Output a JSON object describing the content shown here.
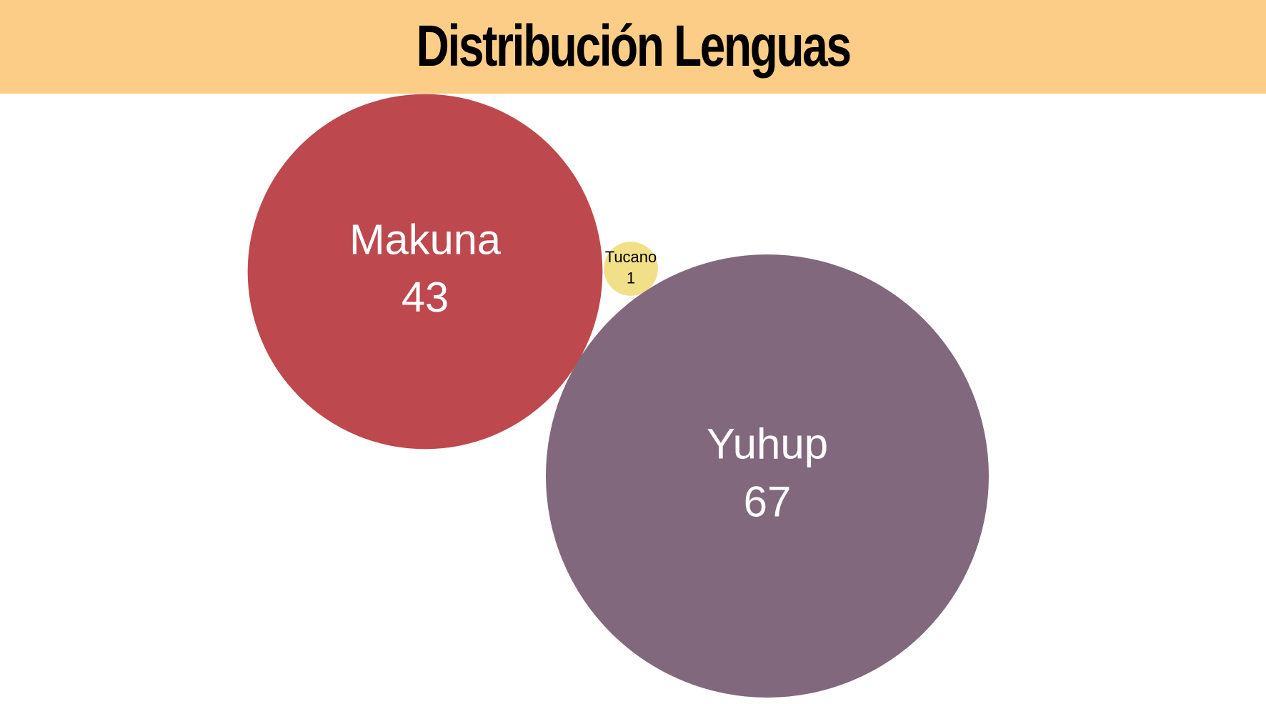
{
  "chart_data": {
    "type": "bubble",
    "title": "Distribución Lenguas",
    "colors": {
      "title_bar": "#fbcd86"
    },
    "bubbles": [
      {
        "name": "Makuna",
        "value": 43,
        "color": "#bd484d",
        "text_color": "#ffffff"
      },
      {
        "name": "Tucano",
        "value": 1,
        "color": "#f2e089",
        "text_color": "#000000"
      },
      {
        "name": "Yuhup",
        "value": 67,
        "color": "#81687c",
        "text_color": "#ffffff"
      }
    ]
  }
}
